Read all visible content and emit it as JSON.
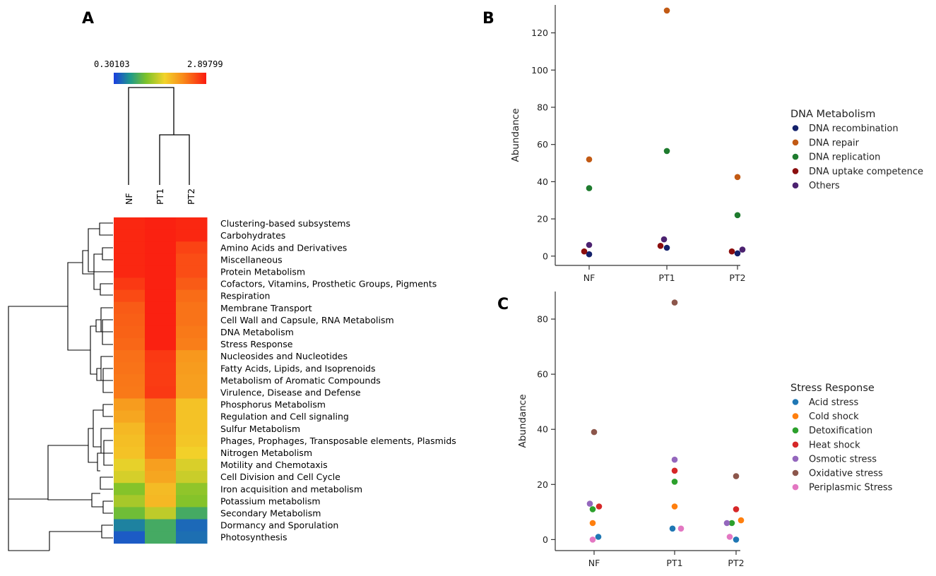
{
  "chart_data": [
    {
      "panel": "A",
      "type": "heatmap",
      "title": "",
      "colorbar": {
        "min": "0.30103",
        "max": "2.89799",
        "min_value": 0.30103,
        "max_value": 2.89799
      },
      "columns": [
        "NF",
        "PT1",
        "PT2"
      ],
      "rows": [
        "Clustering-based subsystems",
        "Carbohydrates",
        "Amino Acids and Derivatives",
        "Miscellaneous",
        "Protein Metabolism",
        "Cofactors, Vitamins, Prosthetic Groups, Pigments",
        "Respiration",
        "Membrane Transport",
        "Cell Wall and Capsule, RNA Metabolism",
        "DNA Metabolism",
        "Stress Response",
        "Nucleosides and Nucleotides",
        "Fatty Acids, Lipids, and Isoprenoids",
        "Metabolism of Aromatic Compounds",
        "Virulence, Disease and Defense",
        "Phosphorus Metabolism",
        "Regulation and Cell signaling",
        "Sulfur Metabolism",
        "Phages, Prophages, Transposable elements, Plasmids",
        "Nitrogen Metabolism",
        "Motility and Chemotaxis",
        "Cell Division and Cell Cycle",
        "Iron acquisition and metabolism",
        "Potassium metabolism",
        "Secondary Metabolism",
        "Dormancy and Sporulation",
        "Photosynthesis"
      ],
      "values": [
        [
          2.82,
          2.86,
          2.82
        ],
        [
          2.82,
          2.86,
          2.82
        ],
        [
          2.82,
          2.86,
          2.66
        ],
        [
          2.82,
          2.86,
          2.6
        ],
        [
          2.82,
          2.86,
          2.6
        ],
        [
          2.72,
          2.86,
          2.52
        ],
        [
          2.62,
          2.86,
          2.42
        ],
        [
          2.52,
          2.86,
          2.38
        ],
        [
          2.5,
          2.86,
          2.38
        ],
        [
          2.48,
          2.86,
          2.35
        ],
        [
          2.45,
          2.86,
          2.32
        ],
        [
          2.4,
          2.72,
          2.15
        ],
        [
          2.38,
          2.7,
          2.12
        ],
        [
          2.36,
          2.7,
          2.1
        ],
        [
          2.35,
          2.72,
          2.1
        ],
        [
          2.12,
          2.38,
          1.85
        ],
        [
          2.05,
          2.38,
          1.85
        ],
        [
          1.92,
          2.35,
          1.85
        ],
        [
          1.88,
          2.32,
          1.82
        ],
        [
          1.85,
          2.3,
          1.75
        ],
        [
          1.68,
          2.1,
          1.62
        ],
        [
          1.6,
          2.05,
          1.55
        ],
        [
          1.25,
          1.9,
          1.3
        ],
        [
          1.4,
          1.92,
          1.25
        ],
        [
          1.15,
          1.5,
          0.95
        ],
        [
          0.65,
          0.95,
          0.52
        ],
        [
          0.45,
          0.95,
          0.55
        ]
      ],
      "column_dendrogram": "(NF,(PT1,PT2))"
    },
    {
      "panel": "B",
      "type": "scatter",
      "title": "",
      "categories": [
        "NF",
        "PT1",
        "PT2"
      ],
      "xlabel": "",
      "ylabel": "Abundance",
      "ylim": [
        -5,
        135
      ],
      "yticks": [
        0,
        20,
        40,
        60,
        80,
        100,
        120
      ],
      "legend_title": "DNA Metabolism",
      "legend_position": "right",
      "series": [
        {
          "name": "DNA recombination",
          "color": "#14216b",
          "values": [
            1,
            4.5,
            1.5
          ]
        },
        {
          "name": "DNA repair",
          "color": "#c25a14",
          "values": [
            52,
            132,
            42.5
          ]
        },
        {
          "name": "DNA replication",
          "color": "#1e7b2e",
          "values": [
            36.5,
            56.5,
            22
          ]
        },
        {
          "name": "DNA uptake competence",
          "color": "#8b0e0e",
          "values": [
            2.5,
            5.5,
            2.5
          ]
        },
        {
          "name": "Others",
          "color": "#4c2270",
          "values": [
            6,
            9,
            3.5
          ]
        }
      ]
    },
    {
      "panel": "C",
      "type": "scatter",
      "title": "",
      "categories": [
        "NF",
        "PT1",
        "PT2"
      ],
      "xlabel": "",
      "ylabel": "Abundance",
      "ylim": [
        -4,
        90
      ],
      "yticks": [
        0,
        20,
        40,
        60,
        80
      ],
      "legend_title": "Stress Response",
      "legend_position": "right",
      "series": [
        {
          "name": "Acid stress",
          "color": "#1f77b4",
          "values": [
            1,
            4,
            0
          ]
        },
        {
          "name": "Cold shock",
          "color": "#ff7f0e",
          "values": [
            6,
            12,
            7
          ]
        },
        {
          "name": "Detoxification",
          "color": "#2ca02c",
          "values": [
            11,
            21,
            6
          ]
        },
        {
          "name": "Heat shock",
          "color": "#d62728",
          "values": [
            12,
            25,
            11
          ]
        },
        {
          "name": "Osmotic stress",
          "color": "#9467bd",
          "values": [
            13,
            29,
            6
          ]
        },
        {
          "name": "Oxidative stress",
          "color": "#8c564b",
          "values": [
            39,
            86,
            23
          ]
        },
        {
          "name": "Periplasmic Stress",
          "color": "#e377c2",
          "values": [
            0,
            4,
            1
          ]
        }
      ]
    }
  ]
}
